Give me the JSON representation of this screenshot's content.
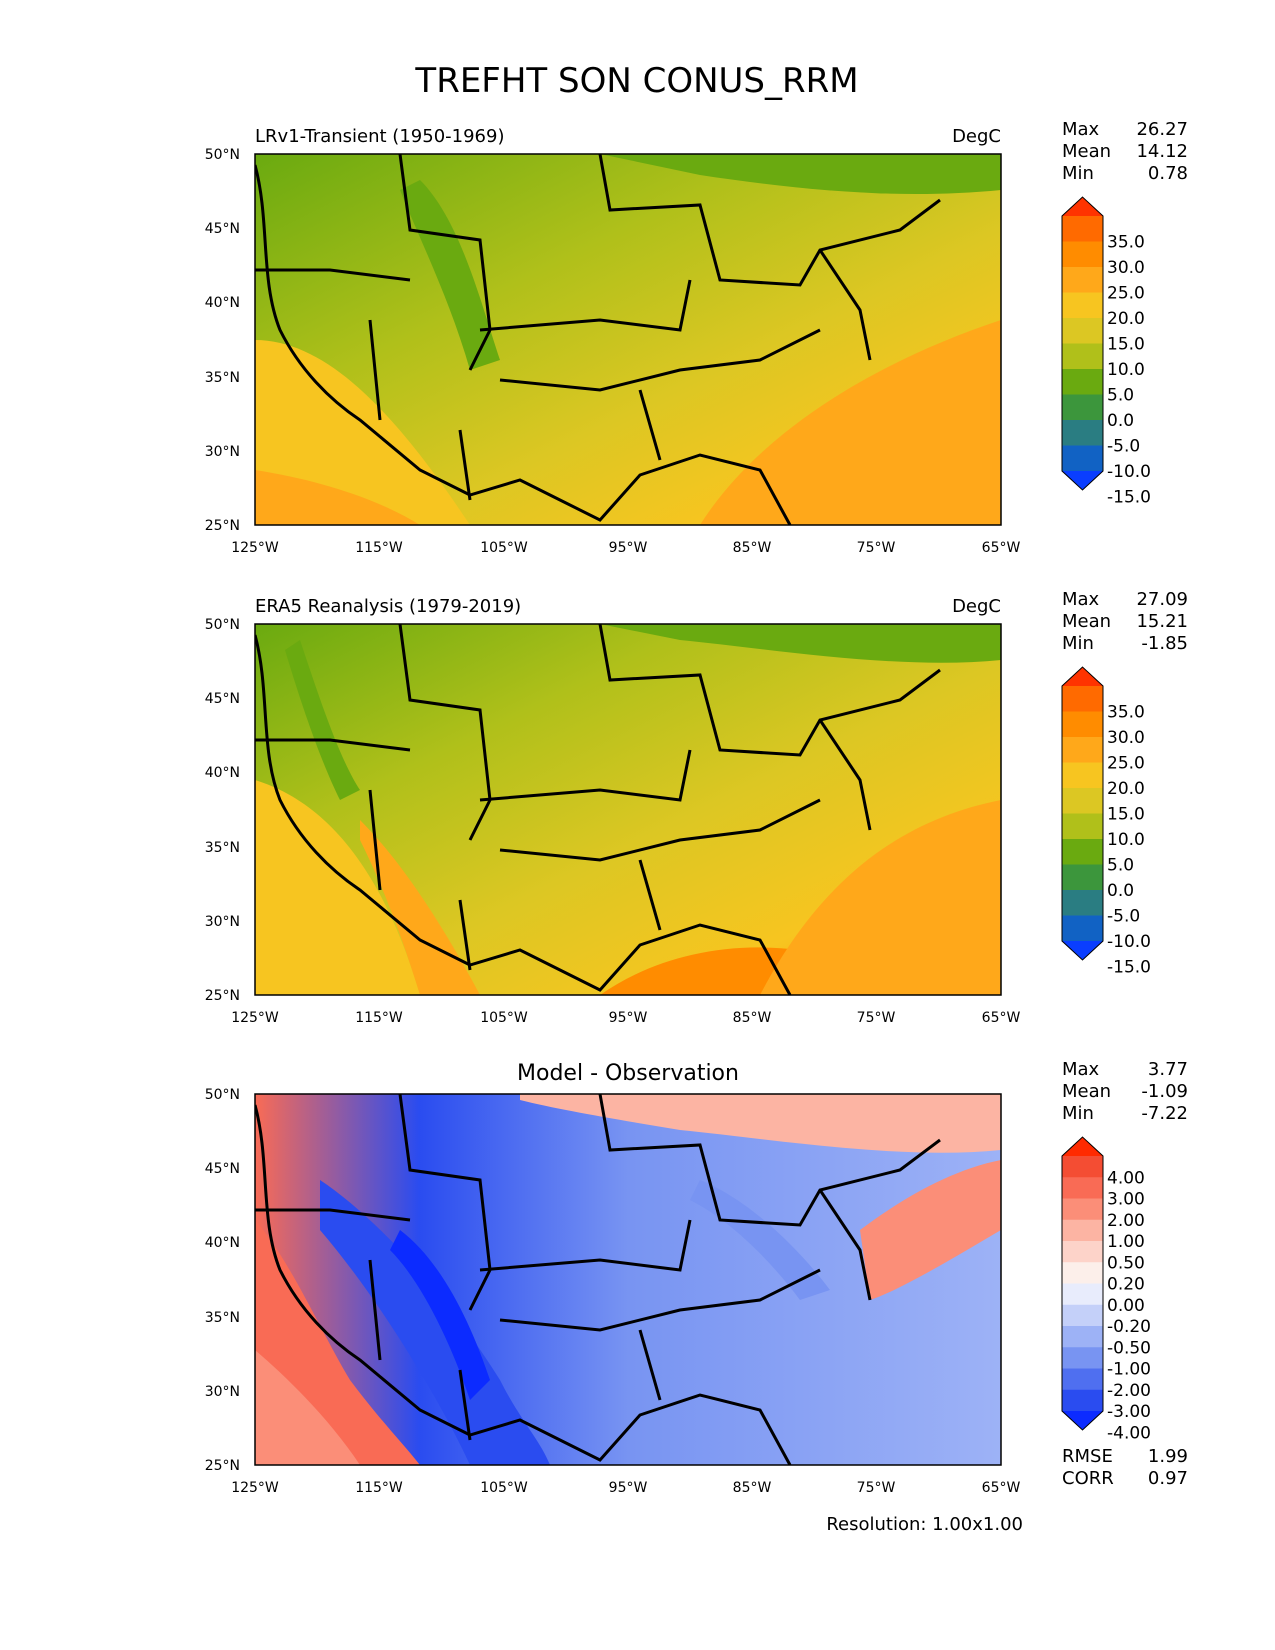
{
  "figure": {
    "title": "TREFHT SON CONUS_RRM",
    "resolution": "Resolution: 1.00x1.00",
    "lat_labels": [
      "50°N",
      "45°N",
      "40°N",
      "35°N",
      "30°N",
      "25°N"
    ],
    "lon_labels": [
      "125°W",
      "115°W",
      "105°W",
      "95°W",
      "85°W",
      "75°W",
      "65°W"
    ]
  },
  "panels": [
    {
      "left_title": "LRv1-Transient (1950-1969)",
      "center_title": "",
      "units": "DegC",
      "stats": [
        {
          "label": "Max",
          "value": "26.27"
        },
        {
          "label": "Mean",
          "value": "14.12"
        },
        {
          "label": "Min",
          "value": "0.78"
        }
      ],
      "colorbar": {
        "labels": [
          "35.0",
          "30.0",
          "25.0",
          "20.0",
          "15.0",
          "10.0",
          "5.0",
          "0.0",
          "-5.0",
          "-10.0",
          "-15.0"
        ],
        "colors": [
          "#ff3300",
          "#ff6a00",
          "#ff8c00",
          "#ffa81a",
          "#f7c520",
          "#dcc723",
          "#b0c01a",
          "#6aaa10",
          "#3c963c",
          "#2a7d82",
          "#1162c4",
          "#0a3eff"
        ]
      }
    },
    {
      "left_title": "ERA5 Reanalysis (1979-2019)",
      "center_title": "",
      "units": "DegC",
      "stats": [
        {
          "label": "Max",
          "value": "27.09"
        },
        {
          "label": "Mean",
          "value": "15.21"
        },
        {
          "label": "Min",
          "value": "-1.85"
        }
      ],
      "colorbar": {
        "labels": [
          "35.0",
          "30.0",
          "25.0",
          "20.0",
          "15.0",
          "10.0",
          "5.0",
          "0.0",
          "-5.0",
          "-10.0",
          "-15.0"
        ],
        "colors": [
          "#ff3300",
          "#ff6a00",
          "#ff8c00",
          "#ffa81a",
          "#f7c520",
          "#dcc723",
          "#b0c01a",
          "#6aaa10",
          "#3c963c",
          "#2a7d82",
          "#1162c4",
          "#0a3eff"
        ]
      }
    },
    {
      "left_title": "",
      "center_title": "Model - Observation",
      "units": "",
      "stats": [
        {
          "label": "Max",
          "value": "3.77"
        },
        {
          "label": "Mean",
          "value": "-1.09"
        },
        {
          "label": "Min",
          "value": "-7.22"
        }
      ],
      "extra_stats": [
        {
          "label": "RMSE",
          "value": "1.99"
        },
        {
          "label": "CORR",
          "value": "0.97"
        }
      ],
      "colorbar": {
        "labels": [
          "4.00",
          "3.00",
          "2.00",
          "1.00",
          "0.50",
          "0.20",
          "0.00",
          "-0.20",
          "-0.50",
          "-1.00",
          "-2.00",
          "-3.00",
          "-4.00"
        ],
        "colors": [
          "#ff2a00",
          "#f44d33",
          "#f96b55",
          "#fb8e78",
          "#fcb4a3",
          "#fdd3c9",
          "#fcefea",
          "#e8ecfc",
          "#c4d0f9",
          "#9db2f6",
          "#7894f2",
          "#4f6ff0",
          "#2a4cf0",
          "#0c2bff"
        ]
      }
    }
  ]
}
